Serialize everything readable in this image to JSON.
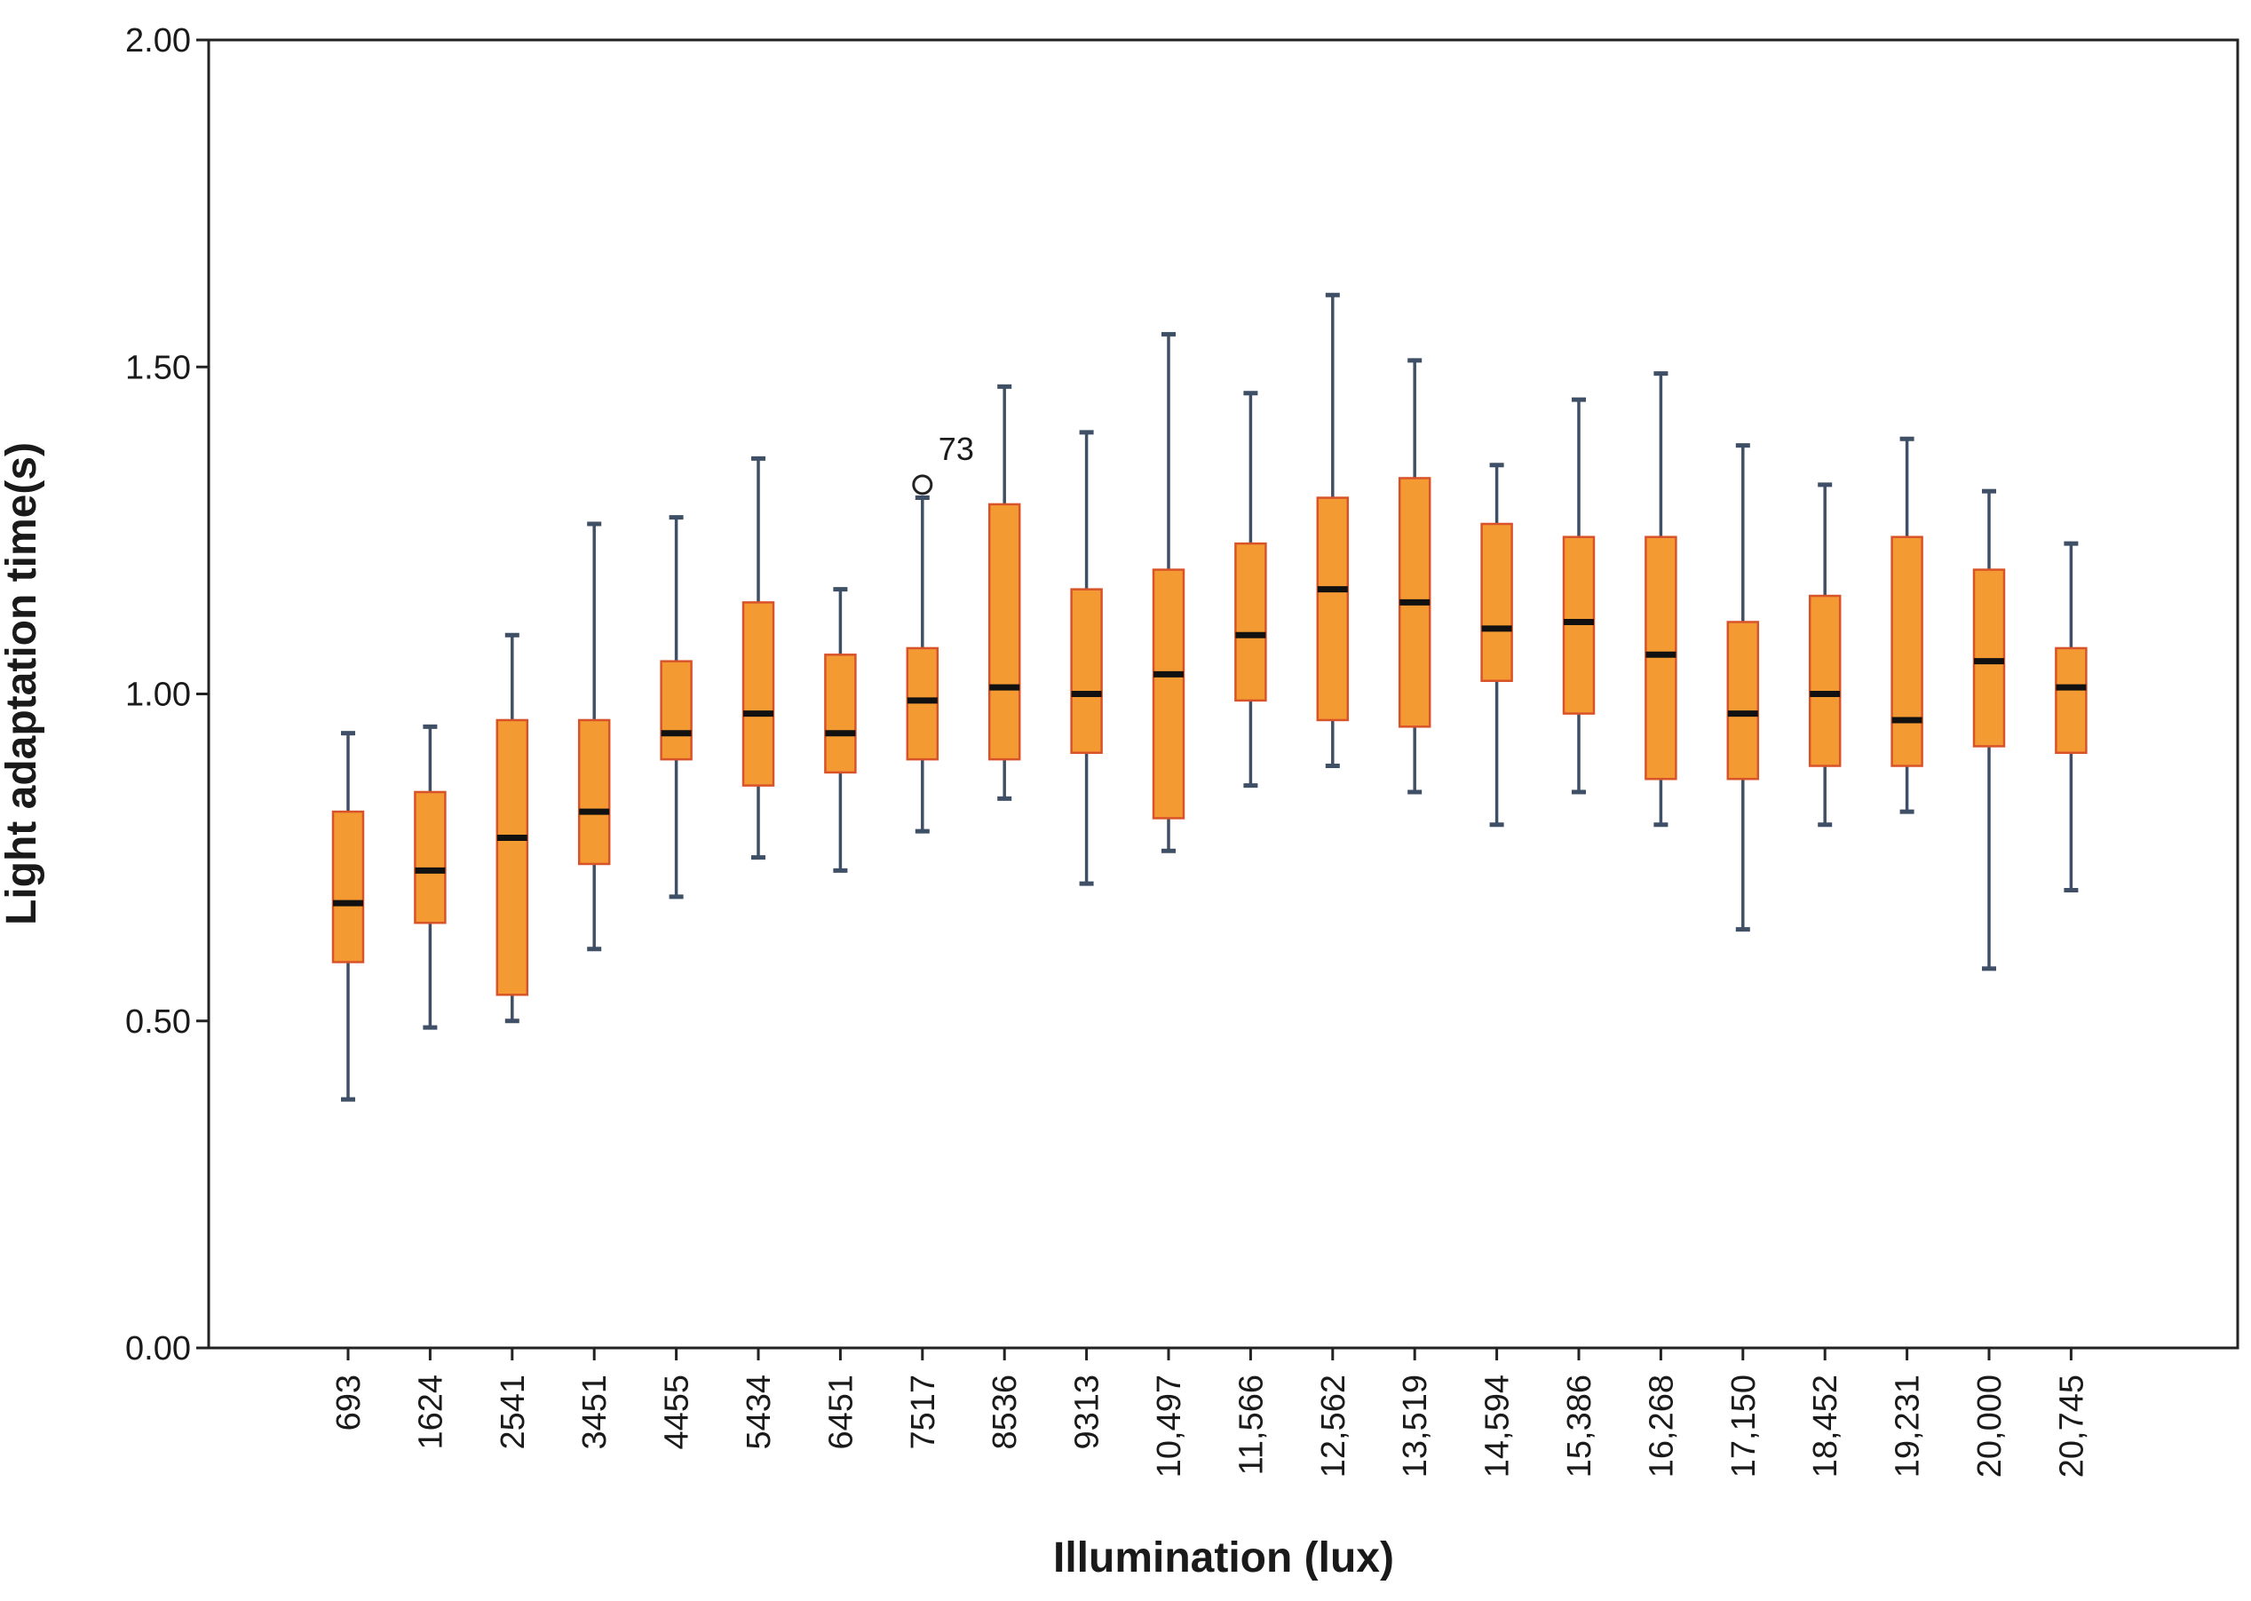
{
  "chart_data": {
    "type": "boxplot",
    "title": "",
    "xlabel": "Illumination (lux)",
    "ylabel": "Light adaptation time(s)",
    "ylim": [
      0,
      2
    ],
    "y_ticks": [
      "0.00",
      "0.50",
      "1.00",
      "1.50",
      "2.00"
    ],
    "y_tick_values": [
      0,
      0.5,
      1.0,
      1.5,
      2.0
    ],
    "grid": false,
    "colors": {
      "box_fill": "#f39a33",
      "box_edge": "#d9532a",
      "whisker": "#3f4f66",
      "median": "#111111",
      "axis": "#222222"
    },
    "categories": [
      "693",
      "1624",
      "2541",
      "3451",
      "4455",
      "5434",
      "6451",
      "7517",
      "8536",
      "9313",
      "10,497",
      "11,566",
      "12,562",
      "13,519",
      "14,594",
      "15,386",
      "16,268",
      "17,150",
      "18,452",
      "19,231",
      "20,000",
      "20,745"
    ],
    "boxes": [
      {
        "min": 0.38,
        "q1": 0.59,
        "median": 0.68,
        "q3": 0.82,
        "max": 0.94
      },
      {
        "min": 0.49,
        "q1": 0.65,
        "median": 0.73,
        "q3": 0.85,
        "max": 0.95
      },
      {
        "min": 0.5,
        "q1": 0.54,
        "median": 0.78,
        "q3": 0.96,
        "max": 1.09
      },
      {
        "min": 0.61,
        "q1": 0.74,
        "median": 0.82,
        "q3": 0.96,
        "max": 1.26
      },
      {
        "min": 0.69,
        "q1": 0.9,
        "median": 0.94,
        "q3": 1.05,
        "max": 1.27
      },
      {
        "min": 0.75,
        "q1": 0.86,
        "median": 0.97,
        "q3": 1.14,
        "max": 1.36
      },
      {
        "min": 0.73,
        "q1": 0.88,
        "median": 0.94,
        "q3": 1.06,
        "max": 1.16
      },
      {
        "min": 0.79,
        "q1": 0.9,
        "median": 0.99,
        "q3": 1.07,
        "max": 1.3,
        "outliers": [
          {
            "value": 1.32,
            "label": "73"
          }
        ]
      },
      {
        "min": 0.84,
        "q1": 0.9,
        "median": 1.01,
        "q3": 1.29,
        "max": 1.47
      },
      {
        "min": 0.71,
        "q1": 0.91,
        "median": 1.0,
        "q3": 1.16,
        "max": 1.4
      },
      {
        "min": 0.76,
        "q1": 0.81,
        "median": 1.03,
        "q3": 1.19,
        "max": 1.55
      },
      {
        "min": 0.86,
        "q1": 0.99,
        "median": 1.09,
        "q3": 1.23,
        "max": 1.46
      },
      {
        "min": 0.89,
        "q1": 0.96,
        "median": 1.16,
        "q3": 1.3,
        "max": 1.61
      },
      {
        "min": 0.85,
        "q1": 0.95,
        "median": 1.14,
        "q3": 1.33,
        "max": 1.51
      },
      {
        "min": 0.8,
        "q1": 1.02,
        "median": 1.1,
        "q3": 1.26,
        "max": 1.35
      },
      {
        "min": 0.85,
        "q1": 0.97,
        "median": 1.11,
        "q3": 1.24,
        "max": 1.45
      },
      {
        "min": 0.8,
        "q1": 0.87,
        "median": 1.06,
        "q3": 1.24,
        "max": 1.49
      },
      {
        "min": 0.64,
        "q1": 0.87,
        "median": 0.97,
        "q3": 1.11,
        "max": 1.38
      },
      {
        "min": 0.8,
        "q1": 0.89,
        "median": 1.0,
        "q3": 1.15,
        "max": 1.32
      },
      {
        "min": 0.82,
        "q1": 0.89,
        "median": 0.96,
        "q3": 1.24,
        "max": 1.39
      },
      {
        "min": 0.58,
        "q1": 0.92,
        "median": 1.05,
        "q3": 1.19,
        "max": 1.31
      },
      {
        "min": 0.7,
        "q1": 0.91,
        "median": 1.01,
        "q3": 1.07,
        "max": 1.23
      }
    ]
  }
}
